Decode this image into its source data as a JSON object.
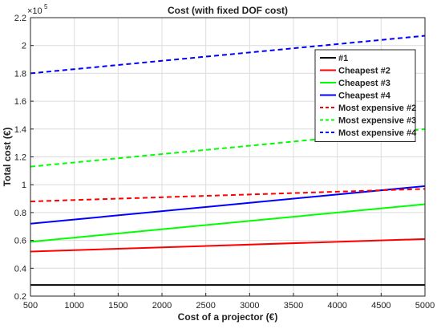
{
  "chart_data": {
    "type": "line",
    "title": "Cost (with fixed DOF cost)",
    "xlabel": "Cost of a projector (€)",
    "ylabel": "Total cost (€)",
    "y_exponent_base": "×10",
    "y_exponent_power": "5",
    "xlim": [
      500,
      5000
    ],
    "ylim": [
      0.2,
      2.2
    ],
    "x_ticks": [
      500,
      1000,
      1500,
      2000,
      2500,
      3000,
      3500,
      4000,
      4500,
      5000
    ],
    "y_ticks": [
      0.2,
      0.4,
      0.6,
      0.8,
      1,
      1.2,
      1.4,
      1.6,
      1.8,
      2,
      2.2
    ],
    "y_tick_labels": [
      "0.2",
      "0.4",
      "0.6",
      "0.8",
      "1",
      "1.2",
      "1.4",
      "1.6",
      "1.8",
      "2",
      "2.2"
    ],
    "x_tick_labels": [
      "500",
      "1000",
      "1500",
      "2000",
      "2500",
      "3000",
      "3500",
      "4000",
      "4500",
      "5000"
    ],
    "grid": true,
    "legend_position": "top-right",
    "x": [
      500,
      5000
    ],
    "series": [
      {
        "name": "#1",
        "color": "#000000",
        "dash": "solid",
        "values": [
          0.28,
          0.28
        ]
      },
      {
        "name": "Cheapest #2",
        "color": "#ff0000",
        "dash": "solid",
        "values": [
          0.52,
          0.61
        ]
      },
      {
        "name": "Cheapest #3",
        "color": "#00ff00",
        "dash": "solid",
        "values": [
          0.59,
          0.86
        ]
      },
      {
        "name": "Cheapest #4",
        "color": "#0000ff",
        "dash": "solid",
        "values": [
          0.72,
          0.99
        ]
      },
      {
        "name": "Most expensive #2",
        "color": "#ff0000",
        "dash": "dashed",
        "values": [
          0.88,
          0.97
        ]
      },
      {
        "name": "Most expensive #3",
        "color": "#00ff00",
        "dash": "dashed",
        "values": [
          1.13,
          1.4
        ]
      },
      {
        "name": "Most expensive #4",
        "color": "#0000ff",
        "dash": "dashed",
        "values": [
          1.8,
          2.07
        ]
      }
    ]
  }
}
